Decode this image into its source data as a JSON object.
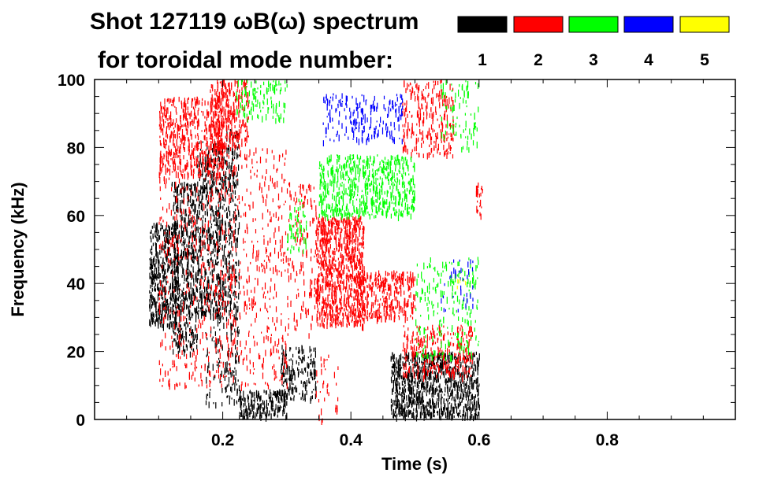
{
  "chart_data": {
    "type": "spectrogram",
    "title_line1": "Shot 127119 ωB(ω) spectrum",
    "title_line2": "for toroidal mode number:",
    "xlabel": "Time (s)",
    "ylabel": "Frequency (kHz)",
    "xlim": [
      0.0,
      1.0
    ],
    "ylim": [
      0,
      100
    ],
    "x_ticks": [
      {
        "value": 0.2,
        "label": "0.2"
      },
      {
        "value": 0.4,
        "label": "0.4"
      },
      {
        "value": 0.6,
        "label": "0.6"
      },
      {
        "value": 0.8,
        "label": "0.8"
      }
    ],
    "y_ticks": [
      {
        "value": 0,
        "label": "0"
      },
      {
        "value": 20,
        "label": "20"
      },
      {
        "value": 40,
        "label": "40"
      },
      {
        "value": 60,
        "label": "60"
      },
      {
        "value": 80,
        "label": "80"
      },
      {
        "value": 100,
        "label": "100"
      }
    ],
    "legend": [
      {
        "mode": "1",
        "color": "#000000"
      },
      {
        "mode": "2",
        "color": "#ff0000"
      },
      {
        "mode": "3",
        "color": "#00ff00"
      },
      {
        "mode": "4",
        "color": "#0000ff"
      },
      {
        "mode": "5",
        "color": "#ffff00"
      }
    ],
    "regions": [
      {
        "mode": "1",
        "color": "#000000",
        "t0": 0.085,
        "t1": 0.13,
        "f0": 28,
        "f1": 58,
        "density": 0.55
      },
      {
        "mode": "1",
        "color": "#000000",
        "t0": 0.12,
        "t1": 0.16,
        "f0": 20,
        "f1": 70,
        "density": 0.45
      },
      {
        "mode": "1",
        "color": "#000000",
        "t0": 0.16,
        "t1": 0.205,
        "f0": 30,
        "f1": 82,
        "density": 0.4
      },
      {
        "mode": "1",
        "color": "#000000",
        "t0": 0.17,
        "t1": 0.205,
        "f0": 5,
        "f1": 30,
        "density": 0.12
      },
      {
        "mode": "1",
        "color": "#000000",
        "t0": 0.205,
        "t1": 0.225,
        "f0": 5,
        "f1": 86,
        "density": 0.3
      },
      {
        "mode": "1",
        "color": "#000000",
        "t0": 0.225,
        "t1": 0.3,
        "f0": 1,
        "f1": 9,
        "density": 0.55
      },
      {
        "mode": "1",
        "color": "#000000",
        "t0": 0.29,
        "t1": 0.345,
        "f0": 6,
        "f1": 22,
        "density": 0.35
      },
      {
        "mode": "1",
        "color": "#000000",
        "t0": 0.462,
        "t1": 0.6,
        "f0": 1,
        "f1": 20,
        "density": 0.6
      },
      {
        "mode": "2",
        "color": "#ff0000",
        "t0": 0.1,
        "t1": 0.2,
        "f0": 72,
        "f1": 95,
        "density": 0.35
      },
      {
        "mode": "2",
        "color": "#ff0000",
        "t0": 0.18,
        "t1": 0.24,
        "f0": 80,
        "f1": 100,
        "density": 0.45
      },
      {
        "mode": "2",
        "color": "#ff0000",
        "t0": 0.1,
        "t1": 0.3,
        "f0": 10,
        "f1": 80,
        "density": 0.1
      },
      {
        "mode": "2",
        "color": "#ff0000",
        "t0": 0.3,
        "t1": 0.345,
        "f0": 25,
        "f1": 70,
        "density": 0.12
      },
      {
        "mode": "2",
        "color": "#ff0000",
        "t0": 0.345,
        "t1": 0.42,
        "f0": 28,
        "f1": 60,
        "density": 0.6
      },
      {
        "mode": "2",
        "color": "#ff0000",
        "t0": 0.41,
        "t1": 0.5,
        "f0": 30,
        "f1": 44,
        "density": 0.45
      },
      {
        "mode": "2",
        "color": "#ff0000",
        "t0": 0.48,
        "t1": 0.59,
        "f0": 13,
        "f1": 28,
        "density": 0.3
      },
      {
        "mode": "2",
        "color": "#ff0000",
        "t0": 0.48,
        "t1": 0.56,
        "f0": 78,
        "f1": 100,
        "density": 0.25
      },
      {
        "mode": "2",
        "color": "#ff0000",
        "t0": 0.595,
        "t1": 0.605,
        "f0": 60,
        "f1": 70,
        "density": 0.4
      },
      {
        "mode": "2",
        "color": "#ff0000",
        "t0": 0.345,
        "t1": 0.38,
        "f0": 0,
        "f1": 20,
        "density": 0.08
      },
      {
        "mode": "3",
        "color": "#00ff00",
        "t0": 0.35,
        "t1": 0.5,
        "f0": 60,
        "f1": 78,
        "density": 0.4
      },
      {
        "mode": "3",
        "color": "#00ff00",
        "t0": 0.3,
        "t1": 0.33,
        "f0": 50,
        "f1": 65,
        "density": 0.2
      },
      {
        "mode": "3",
        "color": "#00ff00",
        "t0": 0.5,
        "t1": 0.6,
        "f0": 18,
        "f1": 48,
        "density": 0.12
      },
      {
        "mode": "3",
        "color": "#00ff00",
        "t0": 0.22,
        "t1": 0.3,
        "f0": 88,
        "f1": 100,
        "density": 0.2
      },
      {
        "mode": "3",
        "color": "#00ff00",
        "t0": 0.54,
        "t1": 0.6,
        "f0": 80,
        "f1": 100,
        "density": 0.12
      },
      {
        "mode": "4",
        "color": "#0000ff",
        "t0": 0.355,
        "t1": 0.48,
        "f0": 82,
        "f1": 96,
        "density": 0.2
      },
      {
        "mode": "4",
        "color": "#0000ff",
        "t0": 0.54,
        "t1": 0.59,
        "f0": 32,
        "f1": 48,
        "density": 0.08
      },
      {
        "mode": "5",
        "color": "#ffff00",
        "t0": 0.56,
        "t1": 0.58,
        "f0": 38,
        "f1": 42,
        "density": 0.1
      }
    ]
  }
}
